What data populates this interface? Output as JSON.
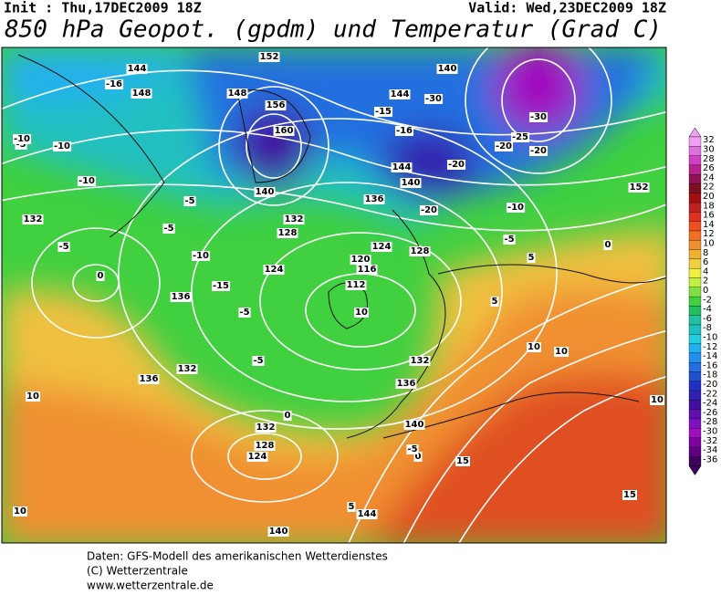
{
  "header": {
    "init": "Init : Thu,17DEC2009 18Z",
    "valid": "Valid: Wed,23DEC2009 18Z",
    "title": "850 hPa Geopot. (gpdm) und Temperatur (Grad C)"
  },
  "colorbar": {
    "labels": [
      32,
      30,
      28,
      26,
      24,
      22,
      20,
      18,
      16,
      14,
      12,
      10,
      8,
      6,
      4,
      2,
      0,
      -2,
      -4,
      -6,
      -8,
      -10,
      -12,
      -14,
      -16,
      -18,
      -20,
      -22,
      -24,
      -26,
      -28,
      -30,
      -32,
      -34,
      -36
    ]
  },
  "map": {
    "contour_labels": [
      "144",
      "148",
      "152",
      "156",
      "160",
      "148",
      "144",
      "140",
      "136",
      "132",
      "128",
      "124",
      "120",
      "116",
      "112",
      "124",
      "128",
      "132",
      "136",
      "140",
      "132",
      "128",
      "124",
      "140",
      "144",
      "136",
      "132",
      "140",
      "144",
      "152",
      "140",
      "132",
      "136",
      "-16",
      "-5",
      "-10",
      "-10",
      "-10",
      "-5",
      "0",
      "-5",
      "-10",
      "-15",
      "-20",
      "-25",
      "-30",
      "-20",
      "-15",
      "-10",
      "-5",
      "0",
      "5",
      "10",
      "10",
      "5",
      "0",
      "-5",
      "-5",
      "10",
      "15",
      "15",
      "10",
      "5",
      "0",
      "-5",
      "10",
      "-20",
      "-30",
      "-16",
      "-20",
      "-5",
      "10"
    ]
  },
  "footer": {
    "line1": "Daten: GFS-Modell des amerikanischen Wetterdienstes",
    "line2": "(C) Wetterzentrale",
    "line3": "www.wetterzentrale.de"
  }
}
